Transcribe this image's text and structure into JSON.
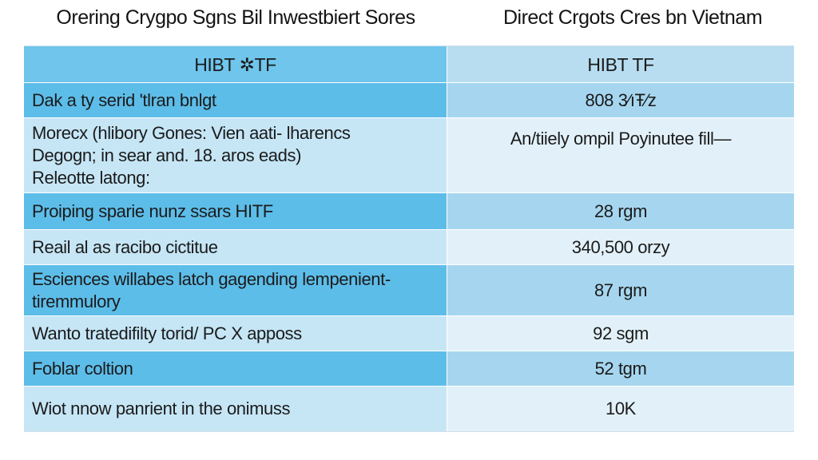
{
  "header": {
    "left_title": "Orering Crygpo Sgns Bil Inwestbiert Sores",
    "right_title": "Direct Crgots Cres bn Vietnam"
  },
  "table": {
    "columns": [
      "HIBT ✲TF",
      "HIBT TF"
    ],
    "rows": [
      {
        "label": "Dak a ty serid 'tlran bnlgt",
        "value": "808 3∕ıŦ⁄z",
        "shade": "dark"
      },
      {
        "label": "Morecx (hlibory Gones: Vien aati- lharencs\nDegogn; in sear and. 18. aros eads)\nReleotte latong:",
        "value": "An/tiiely ompil Poyinutee fill—",
        "shade": "light"
      },
      {
        "label": "Proiping sparie nunz ssars HITF",
        "value": "28 rgm",
        "shade": "dark"
      },
      {
        "label": "Reail al as racibo cictitue",
        "value": "340,500 orzy",
        "shade": "light"
      },
      {
        "label": "Esciences willabes latch gagending lempenient-\ntiremmulory",
        "value": "87 rgm",
        "shade": "dark"
      },
      {
        "label": "Wanto tratedifilty torid/ PC X apposs",
        "value": "92 sgm",
        "shade": "light"
      },
      {
        "label": "Foblar coltion",
        "value": "52 tgm",
        "shade": "dark"
      },
      {
        "label": "Wiot nnow panrient in the onimuss",
        "value": "10K",
        "shade": "light"
      }
    ]
  }
}
